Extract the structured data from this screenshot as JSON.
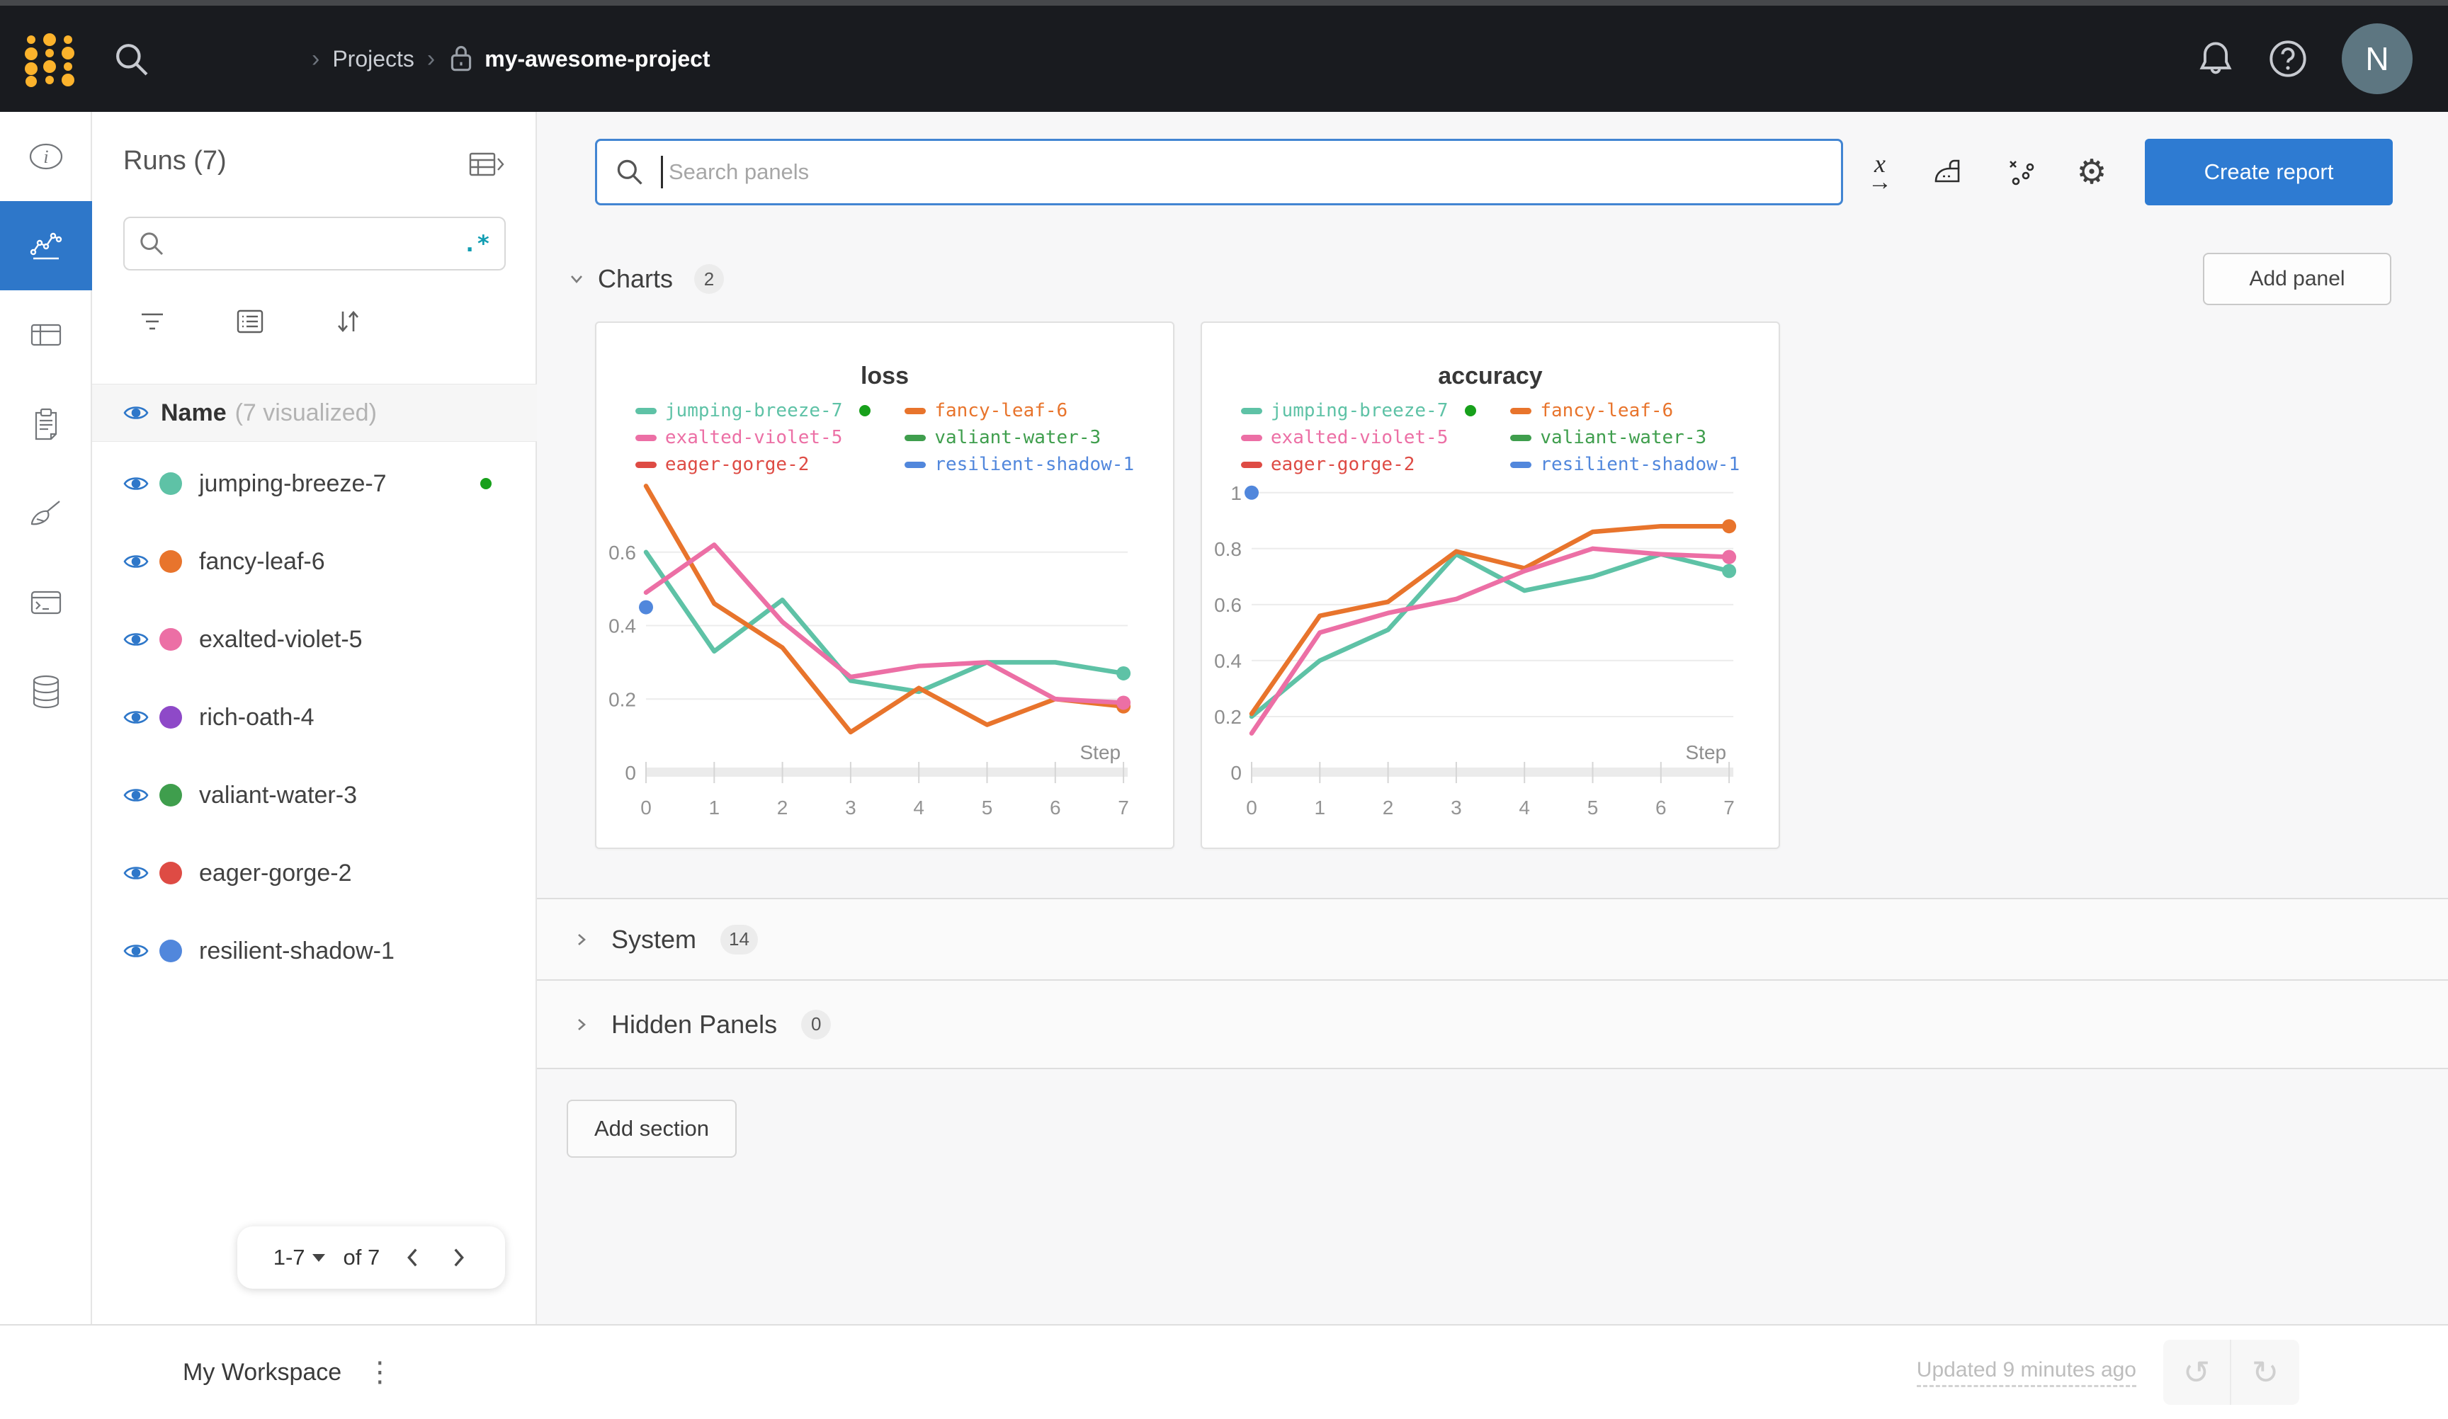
{
  "colors": {
    "accent_blue": "#2e7bd2",
    "topbar_bg": "#191b1f",
    "logo_yellow": "#fcb32c",
    "regex_teal": "#119db2",
    "running_green": "#17a01b",
    "avatar_bg": "#5d7681"
  },
  "topbar": {
    "breadcrumb_sep": "›",
    "breadcrumb_root": "Projects",
    "breadcrumb_current": "my-awesome-project",
    "avatar_initial": "N"
  },
  "rail": {
    "items": [
      {
        "name": "overview",
        "active": false
      },
      {
        "name": "workspace",
        "active": true
      },
      {
        "name": "runs-table",
        "active": false
      },
      {
        "name": "logs",
        "active": false
      },
      {
        "name": "sweeps",
        "active": false
      },
      {
        "name": "terminal",
        "active": false
      },
      {
        "name": "artifacts",
        "active": false
      }
    ]
  },
  "sidebar": {
    "title": "Runs (7)",
    "regex_label": ".*",
    "search_value": "",
    "header_name": "Name",
    "header_sub": "(7 visualized)",
    "runs": [
      {
        "name": "jumping-breeze-7",
        "color": "#5ec2a6",
        "running": true
      },
      {
        "name": "fancy-leaf-6",
        "color": "#e8742c",
        "running": false
      },
      {
        "name": "exalted-violet-5",
        "color": "#ec6fa5",
        "running": false
      },
      {
        "name": "rich-oath-4",
        "color": "#8e49c8",
        "running": false
      },
      {
        "name": "valiant-water-3",
        "color": "#3f9e4d",
        "running": false
      },
      {
        "name": "eager-gorge-2",
        "color": "#de4b44",
        "running": false
      },
      {
        "name": "resilient-shadow-1",
        "color": "#5187dc",
        "running": false
      }
    ],
    "pagination": {
      "range": "1-7",
      "of": "of 7"
    }
  },
  "main": {
    "search_placeholder": "Search panels",
    "create_report_label": "Create report",
    "add_panel_label": "Add panel",
    "add_section_label": "Add section",
    "sections": {
      "charts": {
        "label": "Charts",
        "count": "2"
      },
      "system": {
        "label": "System",
        "count": "14"
      },
      "hidden": {
        "label": "Hidden Panels",
        "count": "0"
      }
    }
  },
  "footer": {
    "workspace_label": "My Workspace",
    "updated_label": "Updated 9 minutes ago"
  },
  "chart_data": [
    {
      "type": "line",
      "title": "loss",
      "xlabel": "Step",
      "x": [
        0,
        1,
        2,
        3,
        4,
        5,
        6,
        7
      ],
      "ylim": [
        0,
        0.8
      ],
      "yticks": [
        0,
        0.2,
        0.4,
        0.6
      ],
      "grid": true,
      "legend_position": "top",
      "series": [
        {
          "name": "jumping-breeze-7",
          "color": "#5ec2a6",
          "running": true,
          "end_dot": true,
          "values": [
            0.6,
            0.33,
            0.47,
            0.25,
            0.22,
            0.3,
            0.3,
            0.27
          ]
        },
        {
          "name": "fancy-leaf-6",
          "color": "#e8742c",
          "running": false,
          "end_dot": true,
          "values": [
            0.78,
            0.46,
            0.34,
            0.11,
            0.23,
            0.13,
            0.2,
            0.18
          ]
        },
        {
          "name": "exalted-violet-5",
          "color": "#ec6fa5",
          "running": false,
          "end_dot": true,
          "values": [
            0.49,
            0.62,
            0.41,
            0.26,
            0.29,
            0.3,
            0.2,
            0.19
          ]
        },
        {
          "name": "valiant-water-3",
          "color": "#3f9e4d",
          "running": false,
          "end_dot": false,
          "values": []
        },
        {
          "name": "eager-gorge-2",
          "color": "#de4b44",
          "running": false,
          "end_dot": false,
          "values": []
        },
        {
          "name": "resilient-shadow-1",
          "color": "#5187dc",
          "running": false,
          "end_dot": false,
          "values": [
            0.45
          ]
        }
      ]
    },
    {
      "type": "line",
      "title": "accuracy",
      "xlabel": "Step",
      "x": [
        0,
        1,
        2,
        3,
        4,
        5,
        6,
        7
      ],
      "ylim": [
        0,
        1.05
      ],
      "yticks": [
        0,
        0.2,
        0.4,
        0.6,
        0.8,
        1
      ],
      "grid": true,
      "legend_position": "top",
      "series": [
        {
          "name": "jumping-breeze-7",
          "color": "#5ec2a6",
          "running": true,
          "end_dot": true,
          "values": [
            0.2,
            0.4,
            0.51,
            0.78,
            0.65,
            0.7,
            0.78,
            0.72
          ]
        },
        {
          "name": "fancy-leaf-6",
          "color": "#e8742c",
          "running": false,
          "end_dot": true,
          "values": [
            0.21,
            0.56,
            0.61,
            0.79,
            0.73,
            0.86,
            0.88,
            0.88
          ]
        },
        {
          "name": "exalted-violet-5",
          "color": "#ec6fa5",
          "running": false,
          "end_dot": true,
          "values": [
            0.14,
            0.5,
            0.57,
            0.62,
            0.72,
            0.8,
            0.78,
            0.77
          ]
        },
        {
          "name": "valiant-water-3",
          "color": "#3f9e4d",
          "running": false,
          "end_dot": false,
          "values": []
        },
        {
          "name": "eager-gorge-2",
          "color": "#de4b44",
          "running": false,
          "end_dot": false,
          "values": []
        },
        {
          "name": "resilient-shadow-1",
          "color": "#5187dc",
          "running": false,
          "end_dot": false,
          "values": [
            1.0
          ]
        }
      ]
    }
  ]
}
